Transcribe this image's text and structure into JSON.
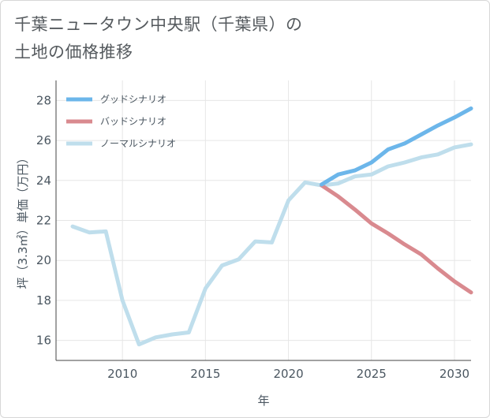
{
  "title": {
    "line1": "千葉ニュータウン中央駅（千葉県）の",
    "line2": "土地の価格推移"
  },
  "chart_data": {
    "type": "line",
    "title": "千葉ニュータウン中央駅（千葉県）の土地の価格推移",
    "xlabel": "年",
    "ylabel": "坪（3.3㎡）単価（万円）",
    "xlim": [
      2006,
      2031
    ],
    "ylim": [
      15,
      29
    ],
    "xticks": [
      2010,
      2015,
      2020,
      2025,
      2030
    ],
    "yticks": [
      16,
      18,
      20,
      22,
      24,
      26,
      28
    ],
    "legend_position": "top-left",
    "series": [
      {
        "name": "グッドシナリオ",
        "color": "#6cb6ea",
        "x": [
          2022,
          2023,
          2024,
          2025,
          2026,
          2027,
          2028,
          2029,
          2030,
          2031
        ],
        "y": [
          23.8,
          24.3,
          24.5,
          24.9,
          25.55,
          25.85,
          26.3,
          26.75,
          27.15,
          27.6
        ]
      },
      {
        "name": "バッドシナリオ",
        "color": "#d98a8f",
        "x": [
          2022,
          2023,
          2024,
          2025,
          2026,
          2027,
          2028,
          2029,
          2030,
          2031
        ],
        "y": [
          23.75,
          23.2,
          22.55,
          21.85,
          21.35,
          20.8,
          20.3,
          19.6,
          18.95,
          18.4
        ]
      },
      {
        "name": "ノーマルシナリオ",
        "color": "#bfdeec",
        "x": [
          2007,
          2008,
          2009,
          2010,
          2011,
          2012,
          2013,
          2014,
          2015,
          2016,
          2017,
          2018,
          2019,
          2020,
          2021,
          2022,
          2023,
          2024,
          2025,
          2026,
          2027,
          2028,
          2029,
          2030,
          2031
        ],
        "y": [
          21.7,
          21.4,
          21.45,
          18.0,
          15.8,
          16.15,
          16.3,
          16.4,
          18.6,
          19.75,
          20.05,
          20.95,
          20.9,
          23.0,
          23.9,
          23.75,
          23.85,
          24.2,
          24.3,
          24.7,
          24.9,
          25.15,
          25.3,
          25.65,
          25.8
        ]
      }
    ]
  }
}
